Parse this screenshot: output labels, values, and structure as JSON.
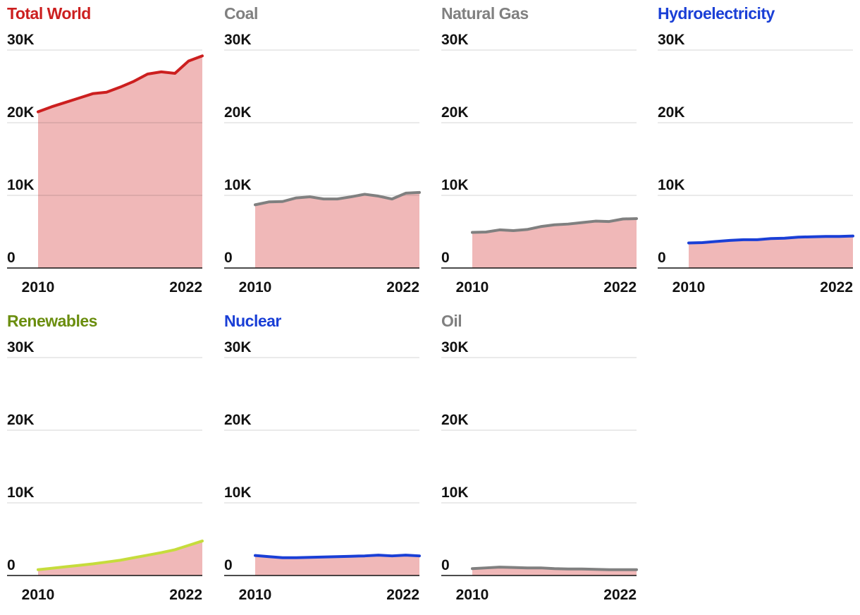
{
  "chart_data": [
    {
      "type": "area",
      "title": "Total World",
      "title_color": "#cc1f1f",
      "line_color": "#cc1f1f",
      "fill_color": "#f0b8b8",
      "x": [
        2010,
        2011,
        2012,
        2013,
        2014,
        2015,
        2016,
        2017,
        2018,
        2019,
        2020,
        2021,
        2022
      ],
      "values": [
        21500,
        22200,
        22800,
        23400,
        24000,
        24200,
        24900,
        25700,
        26700,
        27000,
        26800,
        28500,
        29200
      ],
      "ylim": [
        0,
        30000
      ],
      "yticks": [
        "0",
        "10K",
        "20K",
        "30K"
      ],
      "xticks": [
        "2010",
        "2022"
      ],
      "grid": true
    },
    {
      "type": "area",
      "title": "Coal",
      "title_color": "#808080",
      "line_color": "#808080",
      "fill_color": "#f0b8b8",
      "x": [
        2010,
        2011,
        2012,
        2013,
        2014,
        2015,
        2016,
        2017,
        2018,
        2019,
        2020,
        2021,
        2022
      ],
      "values": [
        8700,
        9100,
        9150,
        9650,
        9800,
        9500,
        9500,
        9800,
        10150,
        9900,
        9500,
        10300,
        10400
      ],
      "ylim": [
        0,
        30000
      ],
      "yticks": [
        "0",
        "10K",
        "20K",
        "30K"
      ],
      "xticks": [
        "2010",
        "2022"
      ],
      "grid": true
    },
    {
      "type": "area",
      "title": "Natural Gas",
      "title_color": "#808080",
      "line_color": "#808080",
      "fill_color": "#f0b8b8",
      "x": [
        2010,
        2011,
        2012,
        2013,
        2014,
        2015,
        2016,
        2017,
        2018,
        2019,
        2020,
        2021,
        2022
      ],
      "values": [
        4900,
        4950,
        5250,
        5150,
        5300,
        5700,
        5950,
        6050,
        6250,
        6450,
        6400,
        6750,
        6800
      ],
      "ylim": [
        0,
        30000
      ],
      "yticks": [
        "0",
        "10K",
        "20K",
        "30K"
      ],
      "xticks": [
        "2010",
        "2022"
      ],
      "grid": true
    },
    {
      "type": "area",
      "title": "Hydroelectricity",
      "title_color": "#1a3fd6",
      "line_color": "#1a3fd6",
      "fill_color": "#f0b8b8",
      "x": [
        2010,
        2011,
        2012,
        2013,
        2014,
        2015,
        2016,
        2017,
        2018,
        2019,
        2020,
        2021,
        2022
      ],
      "values": [
        3450,
        3500,
        3650,
        3800,
        3900,
        3900,
        4050,
        4100,
        4250,
        4300,
        4350,
        4350,
        4400
      ],
      "ylim": [
        0,
        30000
      ],
      "yticks": [
        "0",
        "10K",
        "20K",
        "30K"
      ],
      "xticks": [
        "2010",
        "2022"
      ],
      "grid": true
    },
    {
      "type": "area",
      "title": "Renewables",
      "title_color": "#6b8e0f",
      "line_color": "#c6dc3c",
      "fill_color": "#f0b8b8",
      "x": [
        2010,
        2011,
        2012,
        2013,
        2014,
        2015,
        2016,
        2017,
        2018,
        2019,
        2020,
        2021,
        2022
      ],
      "values": [
        800,
        1000,
        1200,
        1400,
        1600,
        1850,
        2100,
        2450,
        2800,
        3150,
        3550,
        4150,
        4750
      ],
      "ylim": [
        0,
        30000
      ],
      "yticks": [
        "0",
        "10K",
        "20K",
        "30K"
      ],
      "xticks": [
        "2010",
        "2022"
      ],
      "grid": true
    },
    {
      "type": "area",
      "title": "Nuclear",
      "title_color": "#1a3fd6",
      "line_color": "#1a3fd6",
      "fill_color": "#f0b8b8",
      "x": [
        2010,
        2011,
        2012,
        2013,
        2014,
        2015,
        2016,
        2017,
        2018,
        2019,
        2020,
        2021,
        2022
      ],
      "values": [
        2750,
        2600,
        2450,
        2450,
        2500,
        2550,
        2600,
        2650,
        2700,
        2800,
        2700,
        2800,
        2700
      ],
      "ylim": [
        0,
        30000
      ],
      "yticks": [
        "0",
        "10K",
        "20K",
        "30K"
      ],
      "xticks": [
        "2010",
        "2022"
      ],
      "grid": true
    },
    {
      "type": "area",
      "title": "Oil",
      "title_color": "#808080",
      "line_color": "#808080",
      "fill_color": "#f0b8b8",
      "x": [
        2010,
        2011,
        2012,
        2013,
        2014,
        2015,
        2016,
        2017,
        2018,
        2019,
        2020,
        2021,
        2022
      ],
      "values": [
        950,
        1050,
        1150,
        1100,
        1050,
        1050,
        950,
        900,
        900,
        850,
        800,
        800,
        800
      ],
      "ylim": [
        0,
        30000
      ],
      "yticks": [
        "0",
        "10K",
        "20K",
        "30K"
      ],
      "xticks": [
        "2010",
        "2022"
      ],
      "grid": true
    }
  ]
}
